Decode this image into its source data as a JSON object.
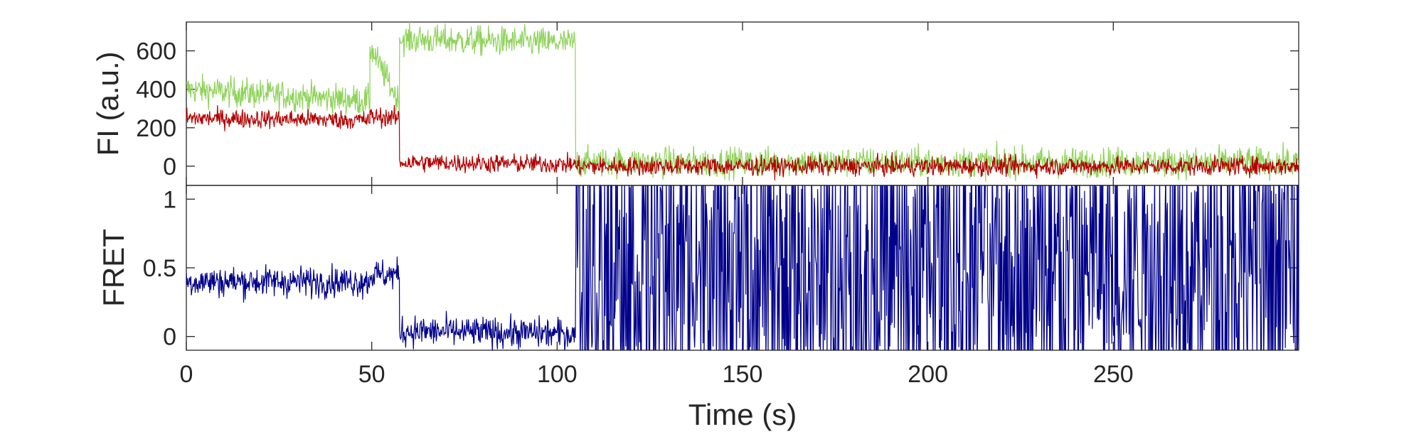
{
  "chart_data": [
    {
      "type": "line",
      "panel": "top",
      "xlabel": "",
      "ylabel": "FI (a.u.)",
      "xlim": [
        0,
        300
      ],
      "ylim": [
        -100,
        750
      ],
      "xticks": [
        0,
        50,
        100,
        150,
        200,
        250
      ],
      "yticks": [
        0,
        200,
        400,
        600
      ],
      "ytick_labels": [
        "0",
        "200",
        "400",
        "600"
      ],
      "grid": false,
      "legend": "none",
      "series": [
        {
          "color": "#8fd35a",
          "noise": 55,
          "segments": [
            {
              "x": [
                0,
                49.5
              ],
              "y": [
                400,
                340
              ]
            },
            {
              "x": [
                49.5,
                57.5
              ],
              "y": [
                620,
                330
              ]
            },
            {
              "x": [
                57.5,
                105
              ],
              "y": [
                660,
                640
              ]
            },
            {
              "x": [
                105,
                300
              ],
              "y": [
                20,
                20
              ]
            }
          ]
        },
        {
          "color": "#b30000",
          "noise": 35,
          "segments": [
            {
              "x": [
                0,
                49.5
              ],
              "y": [
                250,
                240
              ]
            },
            {
              "x": [
                49.5,
                57.5
              ],
              "y": [
                260,
                250
              ]
            },
            {
              "x": [
                57.5,
                105
              ],
              "y": [
                20,
                10
              ]
            },
            {
              "x": [
                105,
                300
              ],
              "y": [
                0,
                0
              ]
            }
          ]
        }
      ]
    },
    {
      "type": "line",
      "panel": "bottom",
      "xlabel": "Time (s)",
      "ylabel": "FRET",
      "xlim": [
        0,
        300
      ],
      "ylim": [
        -0.1,
        1.1
      ],
      "xticks": [
        0,
        50,
        100,
        150,
        200,
        250
      ],
      "xtick_labels": [
        "0",
        "50",
        "100",
        "150",
        "200",
        "250"
      ],
      "yticks": [
        0,
        0.5,
        1
      ],
      "ytick_labels": [
        "0",
        "0.5",
        "1"
      ],
      "grid": false,
      "legend": "none",
      "series": [
        {
          "color": "#00008b",
          "noise": 0.08,
          "segments": [
            {
              "x": [
                0,
                49.5
              ],
              "y": [
                0.4,
                0.4
              ]
            },
            {
              "x": [
                49.5,
                57.5
              ],
              "y": [
                0.45,
                0.45
              ]
            },
            {
              "x": [
                57.5,
                105
              ],
              "y": [
                0.04,
                0.02
              ]
            },
            {
              "x": [
                105,
                300
              ],
              "y": [
                0.5,
                0.5
              ],
              "random_full_range": true
            }
          ]
        }
      ]
    }
  ]
}
